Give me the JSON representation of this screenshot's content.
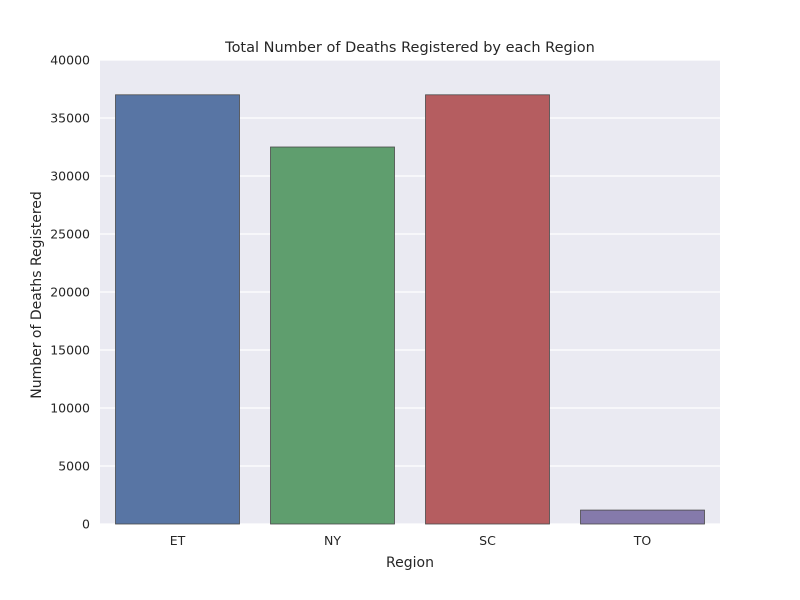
{
  "chart_data": {
    "type": "bar",
    "title": "Total Number of Deaths Registered by each Region",
    "xlabel": "Region",
    "ylabel": "Number of Deaths Registered",
    "categories": [
      "ET",
      "NY",
      "SC",
      "TO"
    ],
    "values": [
      37000,
      32500,
      37000,
      1200
    ],
    "ylim": [
      0,
      40000
    ],
    "yticks": [
      "0",
      "5000",
      "10000",
      "15000",
      "20000",
      "25000",
      "30000",
      "35000",
      "40000"
    ],
    "grid": true,
    "colors": [
      "#5875a4",
      "#5f9e6e",
      "#b55d60",
      "#857aab"
    ],
    "background": "#eaeaf2"
  }
}
